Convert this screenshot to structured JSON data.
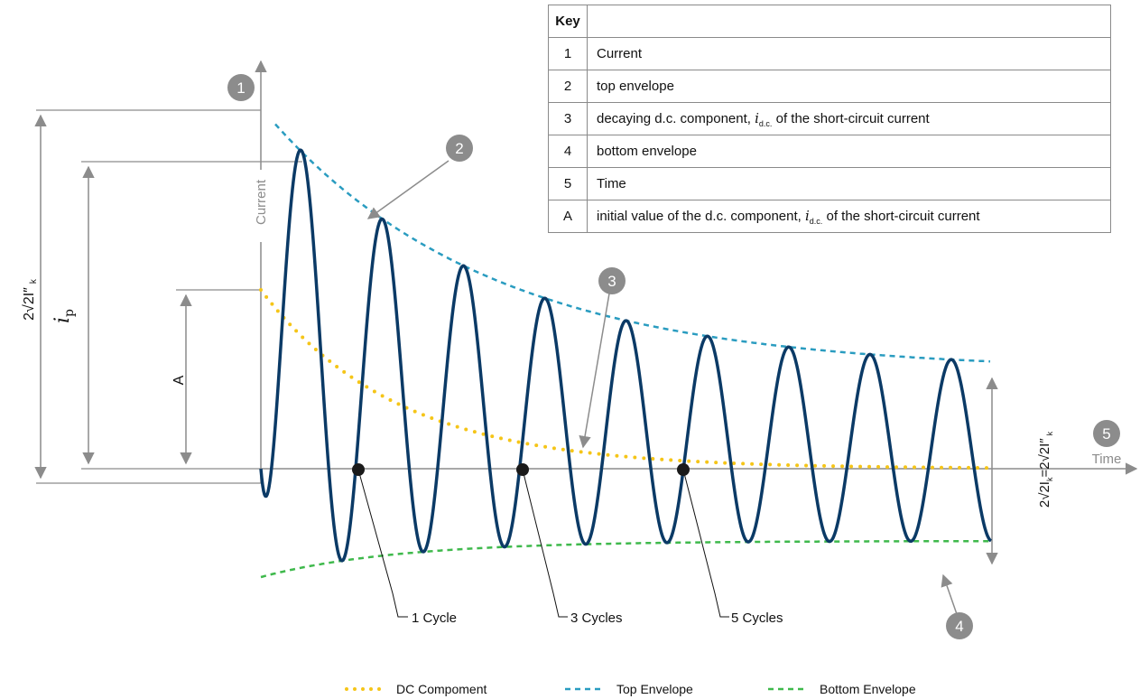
{
  "key_table": {
    "header": {
      "col_key": "Key",
      "col_desc": ""
    },
    "rows": [
      {
        "key": "1",
        "text": "Current"
      },
      {
        "key": "2",
        "text": "top envelope"
      },
      {
        "key": "3",
        "text_pre": "decaying d.c. component, ",
        "italic": "i",
        "sub": "d.c.",
        "text_post": " of the short-circuit current"
      },
      {
        "key": "4",
        "text": "bottom envelope"
      },
      {
        "key": "5",
        "text": "Time"
      },
      {
        "key": "A",
        "text_pre": "initial value of the d.c. component, ",
        "italic": "i",
        "sub": "d.c.",
        "text_post": " of the short-circuit current"
      }
    ]
  },
  "axes": {
    "y_label": "Current",
    "x_label": "Time"
  },
  "markers": [
    "1",
    "2",
    "3",
    "4",
    "5"
  ],
  "dimensions": {
    "left_outer": {
      "main": "2√2I″",
      "sub": "k"
    },
    "ip": {
      "main": "i",
      "sub": "p"
    },
    "a": "A",
    "right": {
      "p1": "2√2I",
      "s1": "k",
      "p2": "=2√2I″",
      "s2": "k"
    }
  },
  "cycles": [
    "1 Cycle",
    "3 Cycles",
    "5 Cycles"
  ],
  "legend": {
    "dc": "DC Compoment",
    "top": "Top Envelope",
    "bottom": "Bottom Envelope"
  },
  "colors": {
    "current": "#0b3a66",
    "top_envelope": "#2a9cc0",
    "bottom_envelope": "#3fb94c",
    "dc_component": "#f5c518",
    "marker": "#8c8c8c",
    "axis": "#8c8c8c"
  }
}
